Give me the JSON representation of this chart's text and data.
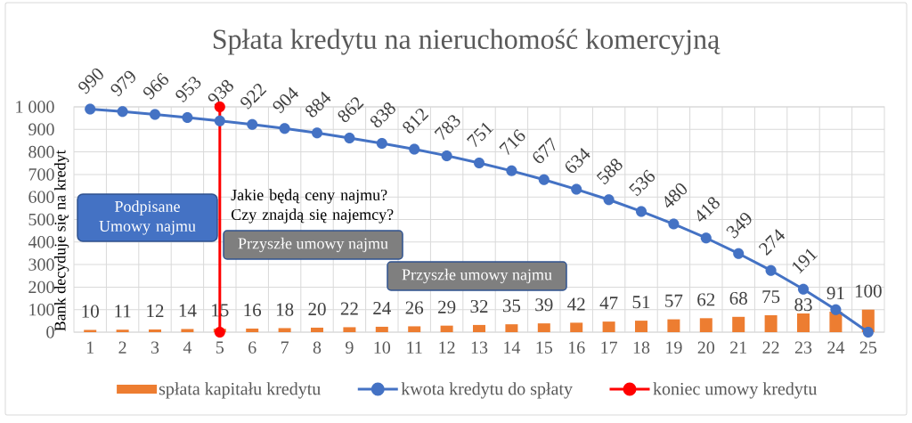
{
  "chart_data": {
    "type": "bar",
    "title": "Spłata kredytu na nieruchomość komercyjną",
    "ylabel": "Bank decyduje się na kredyt",
    "x": [
      1,
      2,
      3,
      4,
      5,
      6,
      7,
      8,
      9,
      10,
      11,
      12,
      13,
      14,
      15,
      16,
      17,
      18,
      19,
      20,
      21,
      22,
      23,
      24,
      25
    ],
    "xlim": [
      0.5,
      25.5
    ],
    "xticks": [
      1,
      2,
      3,
      4,
      5,
      6,
      7,
      8,
      9,
      10,
      11,
      12,
      13,
      14,
      15,
      16,
      17,
      18,
      19,
      20,
      21,
      22,
      23,
      24,
      25
    ],
    "ylim": [
      0,
      1000
    ],
    "yticks": [
      0,
      100,
      200,
      300,
      400,
      500,
      600,
      700,
      800,
      900,
      {
        "value": 1000,
        "label": "1 000"
      }
    ],
    "grid": true,
    "legend": "bottom",
    "series": [
      {
        "name": "spłata kapitału kredytu",
        "color": "#ed7d31",
        "values": [
          10,
          11,
          12,
          14,
          15,
          16,
          18,
          20,
          22,
          24,
          26,
          29,
          32,
          35,
          39,
          42,
          47,
          51,
          57,
          62,
          68,
          75,
          83,
          91,
          100
        ],
        "value_labels": [
          "10",
          "11",
          "12",
          "14",
          "15",
          "16",
          "18",
          "20",
          "22",
          "24",
          "26",
          "29",
          "32",
          "35",
          "39",
          "42",
          "47",
          "51",
          "57",
          "62",
          "68",
          "75",
          "83",
          "91",
          "100"
        ]
      },
      {
        "name": "kwota kredytu do spłaty",
        "type": "line",
        "color": "#4472c4",
        "marker": "circle",
        "values": [
          990,
          979,
          966,
          953,
          938,
          922,
          904,
          884,
          862,
          838,
          812,
          783,
          751,
          716,
          677,
          634,
          588,
          536,
          480,
          418,
          349,
          274,
          191,
          100,
          0
        ],
        "value_labels": [
          "990",
          "979",
          "966",
          "953",
          "938",
          "922",
          "904",
          "884",
          "862",
          "838",
          "812",
          "783",
          "751",
          "716",
          "677",
          "634",
          "588",
          "536",
          "480",
          "418",
          "349",
          "274",
          "191",
          null,
          null
        ]
      },
      {
        "name": "koniec umowy kredytu",
        "type": "line",
        "color": "#ff0000",
        "marker": "circle",
        "x": [
          5,
          5
        ],
        "values": [
          0,
          1000
        ]
      }
    ],
    "annotations": [
      "Podpisane Umowy najmu",
      "Jakie będą ceny najmu? Czy znajdą się najemcy?",
      "Przyszłe umowy najmu",
      "Przyszłe umowy najmu"
    ]
  }
}
